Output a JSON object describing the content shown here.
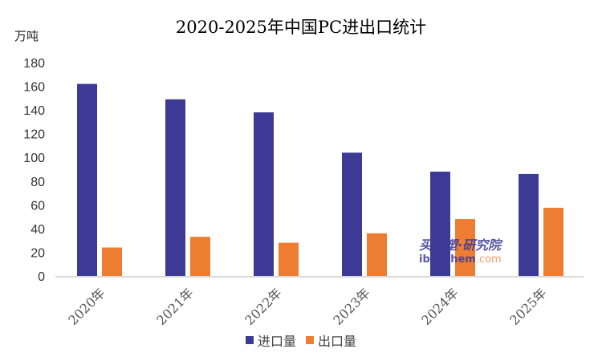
{
  "chart_data": {
    "type": "bar",
    "title": "2020-2025年中国PC进出口统计",
    "ylabel": "万吨",
    "xlabel": "",
    "categories": [
      "2020年",
      "2021年",
      "2022年",
      "2023年",
      "2024年",
      "2025年"
    ],
    "series": [
      {
        "name": "进口量",
        "color": "#3c3a94",
        "values": [
          162,
          149,
          138,
          104,
          88,
          86
        ]
      },
      {
        "name": "出口量",
        "color": "#ed7d31",
        "values": [
          24,
          33,
          28,
          36,
          48,
          57.5
        ]
      }
    ],
    "ylim": [
      0,
      180
    ],
    "yticks": [
      0,
      20,
      40,
      60,
      80,
      100,
      120,
      140,
      160,
      180
    ],
    "grid": false,
    "legend": "bottom"
  },
  "watermark": {
    "line1": "买化塑·研究院",
    "line2a": "ibuychem",
    "line2b": ".com"
  }
}
